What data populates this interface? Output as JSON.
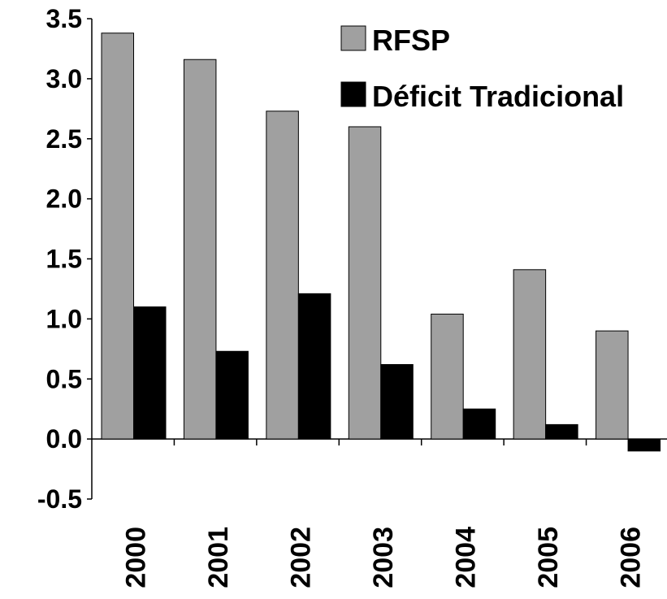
{
  "chart_data": {
    "type": "bar",
    "title": "",
    "xlabel": "",
    "ylabel": "",
    "categories": [
      "2000",
      "2001",
      "2002",
      "2003",
      "2004",
      "2005",
      "2006"
    ],
    "series": [
      {
        "name": "RFSP",
        "color": "#a0a0a0",
        "values": [
          3.38,
          3.16,
          2.73,
          2.6,
          1.04,
          1.41,
          0.9
        ]
      },
      {
        "name": "Déficit Tradicional",
        "color": "#000000",
        "values": [
          1.1,
          0.73,
          1.21,
          0.62,
          0.25,
          0.12,
          -0.1
        ]
      }
    ],
    "ylim": [
      -0.5,
      3.5
    ],
    "yticks": [
      "3.5",
      "3.0",
      "2.5",
      "2.0",
      "1.5",
      "1.0",
      "0.5",
      "0.0",
      "-0.5"
    ],
    "grid": false,
    "legend_position": "top-right"
  }
}
